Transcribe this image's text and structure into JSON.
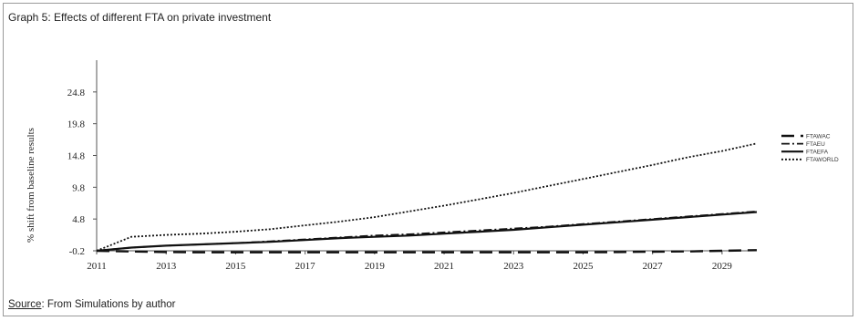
{
  "title": "Graph 5: Effects of different FTA on  private investment",
  "source": {
    "label": "Source",
    "text": ": From Simulations by author"
  },
  "chart_data": {
    "type": "line",
    "title": "Graph 5: Effects of different FTA on  private investment",
    "xlabel": "",
    "ylabel": "% shift from baseline results",
    "x": [
      2011,
      2012,
      2013,
      2014,
      2015,
      2016,
      2017,
      2018,
      2019,
      2020,
      2021,
      2022,
      2023,
      2024,
      2025,
      2026,
      2027,
      2028,
      2029,
      2030
    ],
    "xticks": [
      "2011",
      "2013",
      "2015",
      "2017",
      "2019",
      "2021",
      "2023",
      "2025",
      "2027",
      "2029"
    ],
    "yticks": [
      "-0.2",
      "4.8",
      "9.8",
      "14.8",
      "19.8",
      "24.8"
    ],
    "ylim": [
      -0.2,
      29.8
    ],
    "xlim": [
      2011,
      2030
    ],
    "grid": false,
    "legend_position": "right",
    "series": [
      {
        "name": "FTAWAC",
        "style": "long-dash",
        "values": [
          -0.2,
          -0.3,
          -0.4,
          -0.45,
          -0.45,
          -0.45,
          -0.45,
          -0.45,
          -0.45,
          -0.45,
          -0.45,
          -0.45,
          -0.45,
          -0.45,
          -0.45,
          -0.4,
          -0.35,
          -0.3,
          -0.2,
          -0.1
        ]
      },
      {
        "name": "FTAEU",
        "style": "dash-dot",
        "values": [
          -0.2,
          0.3,
          0.6,
          0.8,
          1.0,
          1.3,
          1.6,
          1.9,
          2.2,
          2.4,
          2.7,
          3.0,
          3.3,
          3.6,
          4.0,
          4.4,
          4.8,
          5.2,
          5.6,
          6.0
        ]
      },
      {
        "name": "FTAEFA",
        "style": "solid",
        "values": [
          -0.2,
          0.3,
          0.6,
          0.8,
          1.0,
          1.2,
          1.5,
          1.8,
          2.0,
          2.2,
          2.5,
          2.8,
          3.1,
          3.5,
          3.9,
          4.3,
          4.7,
          5.1,
          5.5,
          5.9
        ]
      },
      {
        "name": "FTAWORLD",
        "style": "dotted",
        "values": [
          -0.2,
          2.0,
          2.3,
          2.5,
          2.8,
          3.2,
          3.8,
          4.4,
          5.1,
          6.0,
          6.9,
          7.9,
          8.9,
          10.0,
          11.1,
          12.2,
          13.3,
          14.5,
          15.5,
          16.7
        ]
      }
    ]
  }
}
